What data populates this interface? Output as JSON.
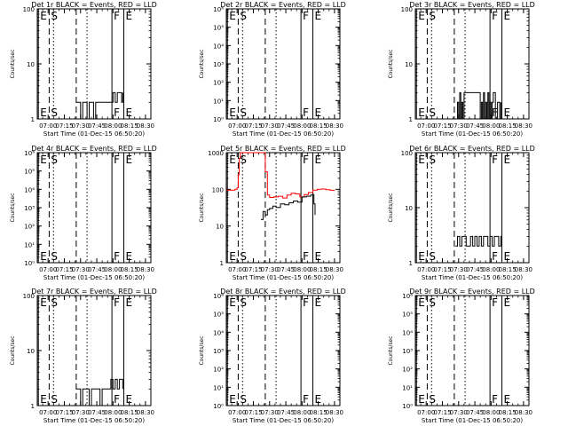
{
  "figure": {
    "xlabel": "Start Time (01-Dec-15 06:50:20)",
    "ylabel": "Counts/sec",
    "time_ticks": [
      "07:00",
      "07:15",
      "07:30",
      "07:45",
      "08:00",
      "08:15",
      "08:30"
    ],
    "colors": {
      "events": "#000000",
      "lld": "#ff0000",
      "axes": "#000000",
      "background": "#ffffff"
    },
    "line_styles": {
      "E": "solid",
      "S": "dashed",
      "F": "solid",
      "dotted": "dotted"
    }
  },
  "chart_data": [
    {
      "type": "line",
      "title": "Det 1r BLACK = Events, RED = LLD",
      "xlabel": "Start Time (01-Dec-15 06:50:20)",
      "ylabel": "Counts/sec",
      "x_range": [
        "06:50",
        "08:35"
      ],
      "yscale": "log",
      "ylim": [
        1,
        100
      ],
      "ytick_labels": [
        "1",
        "10",
        "100"
      ],
      "markers": [
        {
          "label": "E",
          "time": "06:51",
          "style": "solid"
        },
        {
          "label": "S",
          "time": "07:01",
          "style": "dashed"
        },
        {
          "time": "07:05",
          "style": "dotted"
        },
        {
          "time": "07:26",
          "style": "dashed"
        },
        {
          "time": "07:36",
          "style": "dotted"
        },
        {
          "label": "F",
          "time": "07:59",
          "style": "solid"
        },
        {
          "label": "E",
          "time": "08:10",
          "style": "solid"
        }
      ],
      "series": [
        {
          "color": "#000000",
          "x": [
            "07:26",
            "07:28",
            "07:30",
            "07:32",
            "07:34",
            "07:36",
            "07:38",
            "07:40",
            "07:42",
            "07:44",
            "07:46",
            "07:48",
            "07:50",
            "07:52",
            "07:54",
            "07:56",
            "07:58",
            "08:00",
            "08:02",
            "08:04",
            "08:06",
            "08:08",
            "08:09"
          ],
          "y": [
            2,
            2,
            1,
            2,
            2,
            1,
            2,
            2,
            1,
            2,
            2,
            2,
            2,
            2,
            2,
            2,
            2,
            3,
            2,
            3,
            3,
            2,
            3
          ]
        }
      ]
    },
    {
      "type": "line",
      "title": "Det 2r BLACK = Events, RED = LLD",
      "xlabel": "Start Time (01-Dec-15 06:50:20)",
      "ylabel": "Counts/sec",
      "x_range": [
        "06:50",
        "08:35"
      ],
      "yscale": "log",
      "ylim": [
        1,
        1000000
      ],
      "ytick_labels": [
        "10⁰",
        "10¹",
        "10²",
        "10³",
        "10⁴",
        "10⁵",
        "10⁶"
      ],
      "markers": [
        {
          "label": "E",
          "time": "06:51",
          "style": "solid"
        },
        {
          "label": "S",
          "time": "07:01",
          "style": "dashed"
        },
        {
          "time": "07:05",
          "style": "dotted"
        },
        {
          "time": "07:26",
          "style": "dashed"
        },
        {
          "time": "07:36",
          "style": "dotted"
        },
        {
          "label": "F",
          "time": "07:59",
          "style": "solid"
        },
        {
          "label": "E",
          "time": "08:10",
          "style": "solid"
        }
      ],
      "series": []
    },
    {
      "type": "line",
      "title": "Det 3r BLACK = Events, RED = LLD",
      "xlabel": "Start Time (01-Dec-15 06:50:20)",
      "ylabel": "Counts/sec",
      "x_range": [
        "06:50",
        "08:35"
      ],
      "yscale": "log",
      "ylim": [
        1,
        100
      ],
      "ytick_labels": [
        "1",
        "10",
        "100"
      ],
      "markers": [
        {
          "label": "E",
          "time": "06:51",
          "style": "solid"
        },
        {
          "label": "S",
          "time": "07:01",
          "style": "dashed"
        },
        {
          "time": "07:05",
          "style": "dotted"
        },
        {
          "time": "07:26",
          "style": "dashed"
        },
        {
          "time": "07:36",
          "style": "dotted"
        },
        {
          "label": "F",
          "time": "07:59",
          "style": "solid"
        },
        {
          "label": "E",
          "time": "08:10",
          "style": "solid"
        }
      ],
      "series": [
        {
          "color": "#000000",
          "x": [
            "07:28",
            "07:29",
            "07:30",
            "07:31",
            "07:32",
            "07:33",
            "07:34",
            "07:35",
            "07:50",
            "07:51",
            "07:52",
            "07:53",
            "07:54",
            "07:55",
            "07:56",
            "07:57",
            "07:58",
            "07:59",
            "08:00",
            "08:01",
            "08:02",
            "08:04",
            "08:06",
            "08:08",
            "08:09"
          ],
          "y": [
            1,
            2,
            1,
            3,
            1,
            2,
            1,
            3,
            1,
            2,
            1,
            3,
            1,
            2,
            1,
            3,
            1,
            2,
            1,
            2,
            3,
            1,
            2,
            1,
            2
          ]
        }
      ]
    },
    {
      "type": "line",
      "title": "Det 4r BLACK = Events, RED = LLD",
      "xlabel": "Start Time (01-Dec-15 06:50:20)",
      "ylabel": "Counts/sec",
      "x_range": [
        "06:50",
        "08:35"
      ],
      "yscale": "log",
      "ylim": [
        1,
        1000000
      ],
      "ytick_labels": [
        "10⁰",
        "10¹",
        "10²",
        "10³",
        "10⁴",
        "10⁵",
        "10⁶"
      ],
      "markers": [
        {
          "label": "E",
          "time": "06:51",
          "style": "solid"
        },
        {
          "label": "S",
          "time": "07:01",
          "style": "dashed"
        },
        {
          "time": "07:05",
          "style": "dotted"
        },
        {
          "time": "07:26",
          "style": "dashed"
        },
        {
          "time": "07:36",
          "style": "dotted"
        },
        {
          "label": "F",
          "time": "07:59",
          "style": "solid"
        },
        {
          "label": "E",
          "time": "08:10",
          "style": "solid"
        }
      ],
      "series": []
    },
    {
      "type": "line",
      "title": "Det 5r BLACK = Events, RED = LLD",
      "xlabel": "Start Time (01-Dec-15 06:50:20)",
      "ylabel": "Counts/sec",
      "x_range": [
        "06:50",
        "08:35"
      ],
      "yscale": "log",
      "ylim": [
        1,
        1000
      ],
      "ytick_labels": [
        "1",
        "10",
        "100",
        "1000"
      ],
      "markers": [
        {
          "label": "E",
          "time": "06:51",
          "style": "solid"
        },
        {
          "label": "S",
          "time": "07:01",
          "style": "dashed"
        },
        {
          "time": "07:05",
          "style": "dotted"
        },
        {
          "time": "07:26",
          "style": "dashed"
        },
        {
          "time": "07:36",
          "style": "dotted"
        },
        {
          "label": "F",
          "time": "07:59",
          "style": "solid"
        },
        {
          "label": "E",
          "time": "08:10",
          "style": "solid"
        }
      ],
      "series": [
        {
          "color": "#ff0000",
          "x": [
            "06:50",
            "06:54",
            "06:58",
            "07:00",
            "07:01",
            "07:02",
            "07:03",
            "07:04",
            "07:13",
            "07:14",
            "07:16",
            "07:18",
            "07:20",
            "07:22",
            "07:24",
            "07:26",
            "07:28",
            "07:30",
            "07:34",
            "07:38",
            "07:42",
            "07:46",
            "07:50",
            "07:54",
            "07:58",
            "08:02",
            "08:06",
            "08:10",
            "08:14",
            "08:18",
            "08:22",
            "08:26",
            "08:30"
          ],
          "y": [
            95,
            95,
            100,
            110,
            250,
            700,
            1000,
            1000,
            1000,
            1000,
            1000,
            1000,
            1000,
            1000,
            1000,
            300,
            70,
            60,
            62,
            65,
            58,
            70,
            78,
            75,
            62,
            72,
            82,
            95,
            100,
            102,
            98,
            94,
            96
          ]
        },
        {
          "color": "#000000",
          "x": [
            "07:22",
            "07:24",
            "07:26",
            "07:28",
            "07:30",
            "07:33",
            "07:36",
            "07:40",
            "07:44",
            "07:48",
            "07:52",
            "07:56",
            "08:00",
            "08:04",
            "08:08",
            "08:10",
            "08:11",
            "08:12"
          ],
          "y": [
            15,
            25,
            20,
            28,
            30,
            35,
            32,
            40,
            38,
            43,
            48,
            45,
            62,
            65,
            70,
            72,
            40,
            20
          ]
        }
      ]
    },
    {
      "type": "line",
      "title": "Det 6r BLACK = Events, RED = LLD",
      "xlabel": "Start Time (01-Dec-15 06:50:20)",
      "ylabel": "Counts/sec",
      "x_range": [
        "06:50",
        "08:35"
      ],
      "yscale": "log",
      "ylim": [
        1,
        100
      ],
      "ytick_labels": [
        "1",
        "10",
        "100"
      ],
      "markers": [
        {
          "label": "E",
          "time": "06:51",
          "style": "solid"
        },
        {
          "label": "S",
          "time": "07:01",
          "style": "dashed"
        },
        {
          "time": "07:05",
          "style": "dotted"
        },
        {
          "time": "07:26",
          "style": "dashed"
        },
        {
          "time": "07:36",
          "style": "dotted"
        },
        {
          "label": "F",
          "time": "07:59",
          "style": "solid"
        },
        {
          "label": "E",
          "time": "08:10",
          "style": "solid"
        }
      ],
      "series": [
        {
          "color": "#000000",
          "x": [
            "07:27",
            "07:29",
            "07:31",
            "07:33",
            "07:35",
            "07:37",
            "07:39",
            "07:41",
            "07:43",
            "07:45",
            "07:47",
            "07:49",
            "07:51",
            "07:53",
            "07:55",
            "07:57",
            "07:59",
            "08:01",
            "08:03",
            "08:05",
            "08:07",
            "08:09",
            "08:10"
          ],
          "y": [
            2,
            3,
            2,
            3,
            3,
            2,
            2,
            3,
            2,
            3,
            2,
            3,
            2,
            3,
            3,
            2,
            3,
            2,
            3,
            3,
            2,
            3,
            2
          ]
        }
      ]
    },
    {
      "type": "line",
      "title": "Det 7r BLACK = Events, RED = LLD",
      "xlabel": "Start Time (01-Dec-15 06:50:20)",
      "ylabel": "Counts/sec",
      "x_range": [
        "06:50",
        "08:35"
      ],
      "yscale": "log",
      "ylim": [
        1,
        100
      ],
      "ytick_labels": [
        "1",
        "10",
        "100"
      ],
      "markers": [
        {
          "label": "E",
          "time": "06:51",
          "style": "solid"
        },
        {
          "label": "S",
          "time": "07:01",
          "style": "dashed"
        },
        {
          "time": "07:05",
          "style": "dotted"
        },
        {
          "time": "07:26",
          "style": "dashed"
        },
        {
          "time": "07:36",
          "style": "dotted"
        },
        {
          "label": "F",
          "time": "07:59",
          "style": "solid"
        },
        {
          "label": "E",
          "time": "08:10",
          "style": "solid"
        }
      ],
      "series": [
        {
          "color": "#000000",
          "x": [
            "07:26",
            "07:28",
            "07:30",
            "07:32",
            "07:34",
            "07:36",
            "07:38",
            "07:40",
            "07:42",
            "07:44",
            "07:46",
            "07:48",
            "07:50",
            "07:52",
            "07:54",
            "07:56",
            "07:58",
            "08:00",
            "08:02",
            "08:04",
            "08:06",
            "08:08",
            "08:09"
          ],
          "y": [
            2,
            2,
            1,
            2,
            2,
            2,
            1,
            2,
            2,
            2,
            2,
            1,
            2,
            2,
            2,
            2,
            3,
            2,
            3,
            2,
            3,
            3,
            2
          ]
        }
      ]
    },
    {
      "type": "line",
      "title": "Det 8r BLACK = Events, RED = LLD",
      "xlabel": "Start Time (01-Dec-15 06:50:20)",
      "ylabel": "Counts/sec",
      "x_range": [
        "06:50",
        "08:35"
      ],
      "yscale": "log",
      "ylim": [
        1,
        1000000
      ],
      "ytick_labels": [
        "10⁰",
        "10¹",
        "10²",
        "10³",
        "10⁴",
        "10⁵",
        "10⁶"
      ],
      "markers": [
        {
          "label": "E",
          "time": "06:51",
          "style": "solid"
        },
        {
          "label": "S",
          "time": "07:01",
          "style": "dashed"
        },
        {
          "time": "07:05",
          "style": "dotted"
        },
        {
          "time": "07:26",
          "style": "dashed"
        },
        {
          "time": "07:36",
          "style": "dotted"
        },
        {
          "label": "F",
          "time": "07:59",
          "style": "solid"
        },
        {
          "label": "E",
          "time": "08:10",
          "style": "solid"
        }
      ],
      "series": []
    },
    {
      "type": "line",
      "title": "Det 9r BLACK = Events, RED = LLD",
      "xlabel": "Start Time (01-Dec-15 06:50:20)",
      "ylabel": "Counts/sec",
      "x_range": [
        "06:50",
        "08:35"
      ],
      "yscale": "log",
      "ylim": [
        1,
        1000000
      ],
      "ytick_labels": [
        "10⁰",
        "10¹",
        "10²",
        "10³",
        "10⁴",
        "10⁵",
        "10⁶"
      ],
      "markers": [
        {
          "label": "E",
          "time": "06:51",
          "style": "solid"
        },
        {
          "label": "S",
          "time": "07:01",
          "style": "dashed"
        },
        {
          "time": "07:05",
          "style": "dotted"
        },
        {
          "time": "07:26",
          "style": "dashed"
        },
        {
          "time": "07:36",
          "style": "dotted"
        },
        {
          "label": "F",
          "time": "07:59",
          "style": "solid"
        },
        {
          "label": "E",
          "time": "08:10",
          "style": "solid"
        }
      ],
      "series": []
    }
  ]
}
